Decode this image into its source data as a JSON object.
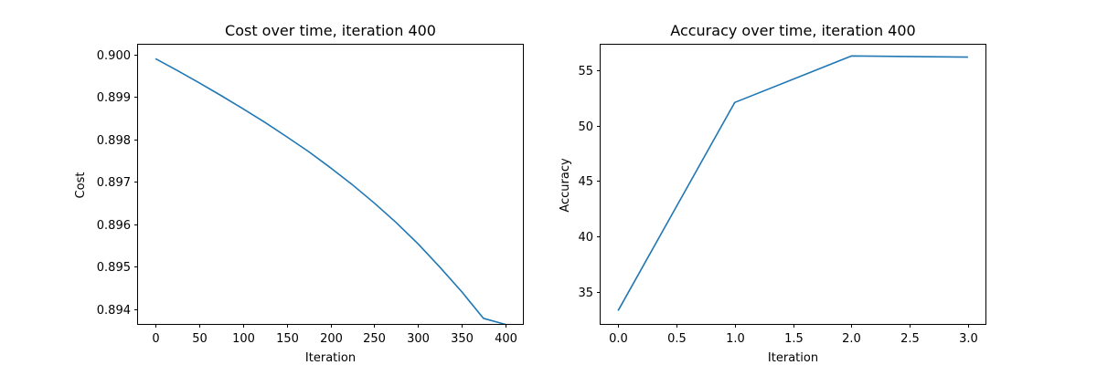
{
  "colors": {
    "series": "#1f77b4",
    "axes": "#000000",
    "background": "#ffffff"
  },
  "chart_data": [
    {
      "type": "line",
      "title": "Cost over time, iteration 400",
      "xlabel": "Iteration",
      "ylabel": "Cost",
      "xlim": [
        -20,
        420
      ],
      "ylim": [
        0.89365,
        0.90025
      ],
      "x_ticks": [
        0,
        50,
        100,
        150,
        200,
        250,
        300,
        350,
        400
      ],
      "x_tick_labels": [
        "0",
        "50",
        "100",
        "150",
        "200",
        "250",
        "300",
        "350",
        "400"
      ],
      "y_ticks": [
        0.894,
        0.895,
        0.896,
        0.897,
        0.898,
        0.899,
        0.9
      ],
      "y_tick_labels": [
        "0.894",
        "0.895",
        "0.896",
        "0.897",
        "0.898",
        "0.899",
        "0.900"
      ],
      "grid": false,
      "series": [
        {
          "color": "#1f77b4",
          "x": [
            0,
            25,
            50,
            75,
            100,
            125,
            150,
            175,
            200,
            225,
            250,
            275,
            300,
            325,
            350,
            375,
            400
          ],
          "y": [
            0.8999,
            0.89962,
            0.89933,
            0.89903,
            0.89872,
            0.8984,
            0.89806,
            0.89771,
            0.89733,
            0.89693,
            0.8965,
            0.89604,
            0.89554,
            0.89499,
            0.89441,
            0.89378,
            0.89364
          ]
        }
      ]
    },
    {
      "type": "line",
      "title": "Accuracy over time, iteration 400",
      "xlabel": "Iteration",
      "ylabel": "Accuracy",
      "xlim": [
        -0.15,
        3.15
      ],
      "ylim": [
        32.1,
        57.4
      ],
      "x_ticks": [
        0,
        0.5,
        1,
        1.5,
        2,
        2.5,
        3
      ],
      "x_tick_labels": [
        "0.0",
        "0.5",
        "1.0",
        "1.5",
        "2.0",
        "2.5",
        "3.0"
      ],
      "y_ticks": [
        35,
        40,
        45,
        50,
        55
      ],
      "y_tick_labels": [
        "35",
        "40",
        "45",
        "50",
        "55"
      ],
      "grid": false,
      "series": [
        {
          "color": "#1f77b4",
          "x": [
            0,
            1,
            2,
            3
          ],
          "y": [
            33.3,
            52.1,
            56.3,
            56.2
          ]
        }
      ]
    }
  ]
}
